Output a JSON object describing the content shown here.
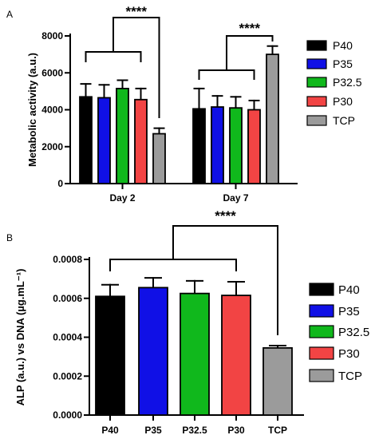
{
  "colors": {
    "P40": "#000000",
    "P35": "#1010e6",
    "P32.5": "#10b81c",
    "P30": "#f24444",
    "TCP": "#9b9b9b"
  },
  "chart_data": [
    {
      "panel_label": "A",
      "type": "bar",
      "ylabel": "Metabolic activity (a.u.)",
      "ylim": [
        0,
        8000
      ],
      "yticks": [
        "0",
        "2000",
        "4000",
        "6000",
        "8000"
      ],
      "categories": [
        "Day 2",
        "Day 7"
      ],
      "series": [
        {
          "name": "P40",
          "values": [
            4700,
            4050
          ],
          "errors": [
            700,
            1100
          ]
        },
        {
          "name": "P35",
          "values": [
            4650,
            4150
          ],
          "errors": [
            700,
            600
          ]
        },
        {
          "name": "P32.5",
          "values": [
            5150,
            4100
          ],
          "errors": [
            450,
            600
          ]
        },
        {
          "name": "P30",
          "values": [
            4550,
            4000
          ],
          "errors": [
            600,
            500
          ]
        },
        {
          "name": "TCP",
          "values": [
            2700,
            7000
          ],
          "errors": [
            300,
            450
          ]
        }
      ],
      "significance": [
        "****",
        "****"
      ],
      "legend_position": "right"
    },
    {
      "panel_label": "B",
      "type": "bar",
      "ylabel": "ALP (a.u.) vs DNA (µg.mL⁻¹)",
      "ylim": [
        0,
        0.0008
      ],
      "yticks": [
        "0.0000",
        "0.0002",
        "0.0004",
        "0.0006",
        "0.0008"
      ],
      "categories": [
        "P40",
        "P35",
        "P32.5",
        "P30",
        "TCP"
      ],
      "values": [
        0.00061,
        0.000655,
        0.000625,
        0.000615,
        0.000345
      ],
      "errors": [
        6e-05,
        5e-05,
        6.5e-05,
        7e-05,
        1.2e-05
      ],
      "significance": [
        "****"
      ],
      "legend_position": "right"
    }
  ]
}
